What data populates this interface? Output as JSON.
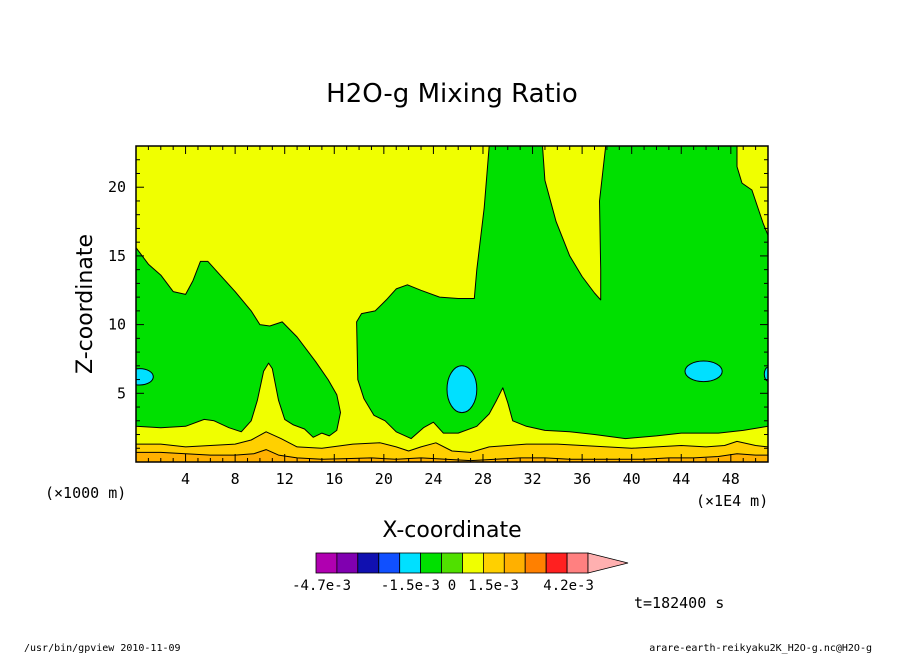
{
  "chart_data": {
    "type": "contour",
    "title": "H2O-g Mixing Ratio",
    "xlabel": "X-coordinate",
    "ylabel": "Z-coordinate",
    "x_unit": "(×1E4 m)",
    "y_unit": "(×1000 m)",
    "x_range": [
      0,
      51
    ],
    "y_range": [
      0,
      23
    ],
    "x_ticks": [
      {
        "value": 4,
        "label": "4"
      },
      {
        "value": 8,
        "label": "8"
      },
      {
        "value": 12,
        "label": "12"
      },
      {
        "value": 16,
        "label": "16"
      },
      {
        "value": 20,
        "label": "20"
      },
      {
        "value": 24,
        "label": "24"
      },
      {
        "value": 28,
        "label": "28"
      },
      {
        "value": 32,
        "label": "32"
      },
      {
        "value": 36,
        "label": "36"
      },
      {
        "value": 40,
        "label": "40"
      },
      {
        "value": 44,
        "label": "44"
      },
      {
        "value": 48,
        "label": "48"
      }
    ],
    "y_ticks": [
      {
        "value": 5,
        "label": "5"
      },
      {
        "value": 10,
        "label": "10"
      },
      {
        "value": 15,
        "label": "15"
      },
      {
        "value": 20,
        "label": "20"
      }
    ],
    "time_label": "t=182400 s",
    "colorbar": {
      "colors": [
        "#b000b0",
        "#8000b0",
        "#1010b0",
        "#1050ff",
        "#00e0ff",
        "#00e000",
        "#50e000",
        "#f0ff00",
        "#ffd000",
        "#ffb000",
        "#ff8000",
        "#ff2020",
        "#ff8080",
        "#ffb0b0"
      ],
      "labels": [
        {
          "text": "-4.7e-3",
          "value": -0.0047
        },
        {
          "text": "-1.5e-3",
          "value": -0.0015
        },
        {
          "text": "0",
          "value": 0
        },
        {
          "text": "1.5e-3",
          "value": 0.0015
        },
        {
          "text": "4.2e-3",
          "value": 0.0042
        }
      ]
    },
    "regions": [
      {
        "name": "yellow-background",
        "color": "#f0ff00",
        "points": [
          [
            0,
            0
          ],
          [
            51,
            0
          ],
          [
            51,
            23
          ],
          [
            0,
            23
          ]
        ]
      },
      {
        "name": "green-main-region",
        "color": "#00e000",
        "points": [
          [
            0,
            15.6
          ],
          [
            1,
            14.4
          ],
          [
            2,
            13.6
          ],
          [
            3,
            12.4
          ],
          [
            4,
            12.2
          ],
          [
            4.6,
            13.2
          ],
          [
            5.2,
            14.6
          ],
          [
            5.8,
            14.6
          ],
          [
            6.6,
            13.8
          ],
          [
            8,
            12.4
          ],
          [
            9.3,
            11
          ],
          [
            10,
            10
          ],
          [
            10.8,
            9.9
          ],
          [
            11.8,
            10.2
          ],
          [
            13,
            9.1
          ],
          [
            14.5,
            7.3
          ],
          [
            15.5,
            6
          ],
          [
            16.2,
            4.9
          ],
          [
            16.5,
            3.6
          ],
          [
            16.2,
            2.3
          ],
          [
            15.6,
            1.9
          ],
          [
            15,
            2.1
          ],
          [
            14.3,
            1.8
          ],
          [
            13.6,
            2.4
          ],
          [
            12.7,
            2.7
          ],
          [
            12,
            3.1
          ],
          [
            11.5,
            4.5
          ],
          [
            11,
            6.8
          ],
          [
            10.7,
            7.2
          ],
          [
            10.3,
            6.6
          ],
          [
            9.8,
            4.5
          ],
          [
            9.3,
            3
          ],
          [
            8.5,
            2.2
          ],
          [
            7.5,
            2.5
          ],
          [
            6.3,
            3
          ],
          [
            5.5,
            3.1
          ],
          [
            4,
            2.6
          ],
          [
            2,
            2.5
          ],
          [
            0,
            2.6
          ]
        ]
      },
      {
        "name": "green-right-region",
        "color": "#00e000",
        "points": [
          [
            17.9,
            6
          ],
          [
            17.8,
            10.2
          ],
          [
            18.2,
            10.8
          ],
          [
            19.3,
            11
          ],
          [
            20.2,
            11.8
          ],
          [
            21,
            12.6
          ],
          [
            21.9,
            12.9
          ],
          [
            23,
            12.5
          ],
          [
            24.5,
            12
          ],
          [
            26,
            11.9
          ],
          [
            27.3,
            11.9
          ],
          [
            27.5,
            14
          ],
          [
            28.1,
            18.5
          ],
          [
            28.5,
            23
          ],
          [
            32.8,
            23
          ],
          [
            33,
            20.5
          ],
          [
            33.9,
            17.5
          ],
          [
            35,
            15
          ],
          [
            36,
            13.5
          ],
          [
            37,
            12.3
          ],
          [
            37.5,
            11.8
          ],
          [
            37.5,
            14
          ],
          [
            37.4,
            19
          ],
          [
            37.9,
            23
          ],
          [
            48.5,
            23
          ],
          [
            48.5,
            21.5
          ],
          [
            48.9,
            20.3
          ],
          [
            49.7,
            19.8
          ],
          [
            50.6,
            17.4
          ],
          [
            51,
            16.5
          ],
          [
            51,
            2.6
          ],
          [
            49,
            2.3
          ],
          [
            47,
            2.1
          ],
          [
            44,
            2.1
          ],
          [
            42,
            1.9
          ],
          [
            39.5,
            1.7
          ],
          [
            37,
            2
          ],
          [
            35,
            2.2
          ],
          [
            33,
            2.3
          ],
          [
            31.5,
            2.6
          ],
          [
            30.4,
            3
          ],
          [
            30,
            4.3
          ],
          [
            29.6,
            5.4
          ],
          [
            29.1,
            4.5
          ],
          [
            28.5,
            3.5
          ],
          [
            27.5,
            2.6
          ],
          [
            26,
            2.1
          ],
          [
            24.8,
            2.1
          ],
          [
            24,
            2.9
          ],
          [
            23.2,
            2.5
          ],
          [
            22.2,
            1.7
          ],
          [
            21,
            2.2
          ],
          [
            20.1,
            3
          ],
          [
            19.2,
            3.4
          ],
          [
            18.4,
            4.6
          ]
        ]
      },
      {
        "name": "orange-band-1",
        "color": "#ffd000",
        "points": [
          [
            0,
            0
          ],
          [
            0,
            1.3
          ],
          [
            2,
            1.3
          ],
          [
            4,
            1.1
          ],
          [
            6,
            1.2
          ],
          [
            8,
            1.3
          ],
          [
            9.3,
            1.6
          ],
          [
            10.5,
            2.2
          ],
          [
            11.7,
            1.7
          ],
          [
            13,
            1.1
          ],
          [
            15,
            1
          ],
          [
            17.5,
            1.3
          ],
          [
            19.7,
            1.4
          ],
          [
            21,
            1.1
          ],
          [
            22,
            0.8
          ],
          [
            23,
            1.1
          ],
          [
            24.2,
            1.4
          ],
          [
            25.5,
            0.8
          ],
          [
            27,
            0.7
          ],
          [
            28.5,
            1.1
          ],
          [
            30,
            1.2
          ],
          [
            31.5,
            1.3
          ],
          [
            34,
            1.3
          ],
          [
            36,
            1.2
          ],
          [
            38,
            1.1
          ],
          [
            40,
            1
          ],
          [
            42,
            1.1
          ],
          [
            44,
            1.2
          ],
          [
            46,
            1.1
          ],
          [
            47.5,
            1.2
          ],
          [
            48.5,
            1.5
          ],
          [
            50,
            1.2
          ],
          [
            51,
            1.1
          ],
          [
            51,
            0
          ]
        ]
      },
      {
        "name": "orange-band-2",
        "color": "#ffb000",
        "points": [
          [
            0,
            0
          ],
          [
            0,
            0.7
          ],
          [
            2,
            0.7
          ],
          [
            4,
            0.6
          ],
          [
            6,
            0.5
          ],
          [
            8,
            0.5
          ],
          [
            9.5,
            0.6
          ],
          [
            10.5,
            0.9
          ],
          [
            11.5,
            0.5
          ],
          [
            13,
            0.3
          ],
          [
            15,
            0.2
          ],
          [
            17,
            0.25
          ],
          [
            19,
            0.3
          ],
          [
            21,
            0.2
          ],
          [
            23,
            0.3
          ],
          [
            25,
            0.2
          ],
          [
            27,
            0.1
          ],
          [
            29,
            0.2
          ],
          [
            31,
            0.3
          ],
          [
            33,
            0.3
          ],
          [
            35,
            0.2
          ],
          [
            37,
            0.2
          ],
          [
            39,
            0.2
          ],
          [
            41,
            0.2
          ],
          [
            43,
            0.3
          ],
          [
            45,
            0.3
          ],
          [
            47,
            0.4
          ],
          [
            48.5,
            0.6
          ],
          [
            50,
            0.5
          ],
          [
            51,
            0.5
          ],
          [
            51,
            0
          ]
        ]
      }
    ],
    "ellipses": [
      {
        "name": "cyan-blob-left",
        "color": "#00e0ff",
        "cx": 0.3,
        "cy": 6.2,
        "rx": 1.1,
        "ry": 0.6
      },
      {
        "name": "cyan-blob-center",
        "color": "#00e0ff",
        "cx": 26.3,
        "cy": 5.3,
        "rx": 1.2,
        "ry": 1.7
      },
      {
        "name": "cyan-blob-right",
        "color": "#00e0ff",
        "cx": 45.8,
        "cy": 6.6,
        "rx": 1.5,
        "ry": 0.75
      },
      {
        "name": "cyan-blob-edge",
        "color": "#00e0ff",
        "cx": 51,
        "cy": 6.4,
        "rx": 0.3,
        "ry": 0.5
      }
    ]
  },
  "footer": {
    "left": "/usr/bin/gpview  2010-11-09",
    "right": "arare-earth-reikyaku2K_H2O-g.nc@H2O-g"
  }
}
